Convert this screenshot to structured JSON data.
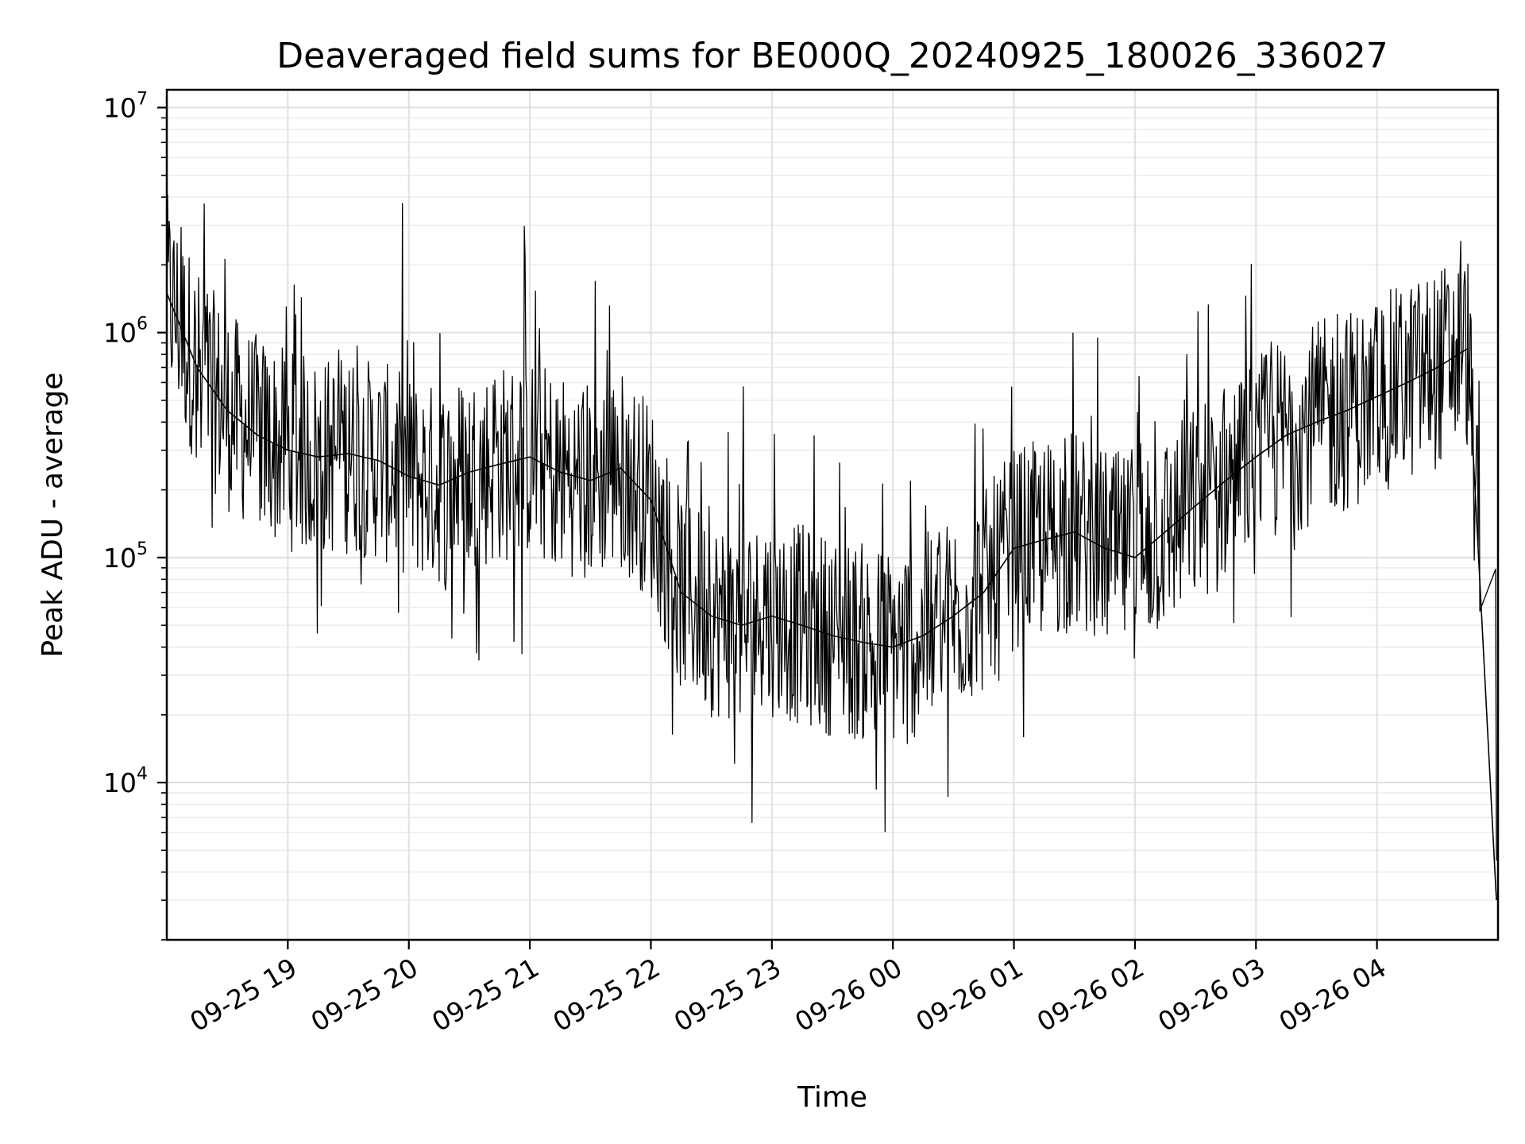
{
  "chart_data": {
    "type": "line",
    "title": "Deaveraged field sums for BE000Q_20240925_180026_336027",
    "xlabel": "Time",
    "ylabel": "Peak ADU - average",
    "yscale": "log",
    "ylim": [
      2000,
      12000000
    ],
    "xlim": [
      "2024-09-25 18:00",
      "2024-09-26 05:00"
    ],
    "grid": true,
    "line_color": "#000000",
    "x_ticks": [
      "09-25 19",
      "09-25 20",
      "09-25 21",
      "09-25 22",
      "09-25 23",
      "09-26 00",
      "09-26 01",
      "09-26 02",
      "09-26 03",
      "09-26 04"
    ],
    "y_ticks": [
      {
        "base": "10",
        "exp": "4",
        "value": 10000
      },
      {
        "base": "10",
        "exp": "5",
        "value": 100000
      },
      {
        "base": "10",
        "exp": "6",
        "value": 1000000
      },
      {
        "base": "10",
        "exp": "7",
        "value": 10000000
      }
    ],
    "series": [
      {
        "x": [
          "2024-09-25 18:00",
          "2024-09-25 18:15",
          "2024-09-25 18:30",
          "2024-09-25 18:45",
          "2024-09-25 19:00",
          "2024-09-25 19:15",
          "2024-09-25 19:30",
          "2024-09-25 19:45",
          "2024-09-25 20:00",
          "2024-09-25 20:15",
          "2024-09-25 20:30",
          "2024-09-25 20:45",
          "2024-09-25 21:00",
          "2024-09-25 21:15",
          "2024-09-25 21:30",
          "2024-09-25 21:45",
          "2024-09-25 22:00",
          "2024-09-25 22:15",
          "2024-09-25 22:30",
          "2024-09-25 22:45",
          "2024-09-25 23:00",
          "2024-09-25 23:15",
          "2024-09-25 23:30",
          "2024-09-25 23:45",
          "2024-09-26 00:00",
          "2024-09-26 00:15",
          "2024-09-26 00:30",
          "2024-09-26 00:45",
          "2024-09-26 01:00",
          "2024-09-26 01:15",
          "2024-09-26 01:30",
          "2024-09-26 01:45",
          "2024-09-26 02:00",
          "2024-09-26 02:15",
          "2024-09-26 02:30",
          "2024-09-26 02:45",
          "2024-09-26 03:00",
          "2024-09-26 03:15",
          "2024-09-26 03:30",
          "2024-09-26 03:45",
          "2024-09-26 04:00",
          "2024-09-26 04:15",
          "2024-09-26 04:30",
          "2024-09-26 04:45",
          "2024-09-26 05:00"
        ],
        "y": [
          1500000,
          700000,
          450000,
          350000,
          300000,
          280000,
          290000,
          270000,
          230000,
          210000,
          240000,
          260000,
          280000,
          240000,
          220000,
          250000,
          180000,
          70000,
          55000,
          50000,
          55000,
          50000,
          45000,
          42000,
          40000,
          45000,
          55000,
          70000,
          110000,
          120000,
          130000,
          110000,
          100000,
          130000,
          170000,
          220000,
          280000,
          350000,
          400000,
          450000,
          520000,
          600000,
          700000,
          850000,
          3000
        ]
      }
    ]
  }
}
